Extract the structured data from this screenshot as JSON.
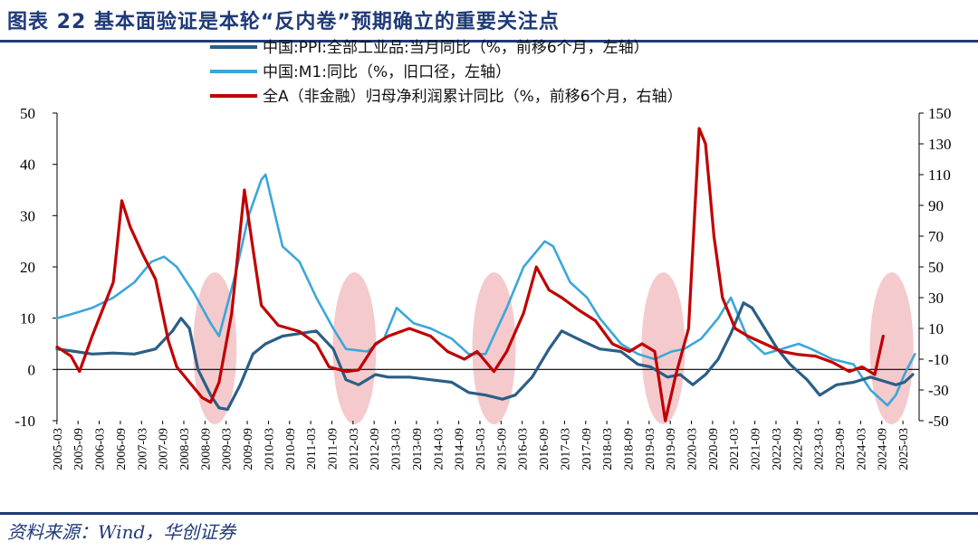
{
  "header": {
    "figure_title": "图表 22   基本面验证是本轮“反内卷”预期确立的重要关注点"
  },
  "footer": {
    "source": "资料来源：Wind，华创证券"
  },
  "colors": {
    "brand": "#1f3a78",
    "ppi": "#2a5f86",
    "m1": "#3aa7d9",
    "profit": "#c00000",
    "highlight": "#f2b8bc"
  },
  "chart_data": {
    "type": "line",
    "title": "",
    "left_axis": {
      "ylim": [
        -10,
        50
      ],
      "ticks": [
        -10,
        0,
        10,
        20,
        30,
        40,
        50
      ]
    },
    "right_axis": {
      "ylim": [
        -50,
        150
      ],
      "ticks": [
        -50,
        -30,
        -10,
        10,
        30,
        50,
        70,
        90,
        110,
        130,
        150
      ]
    },
    "x_tick_labels": [
      "2005-03",
      "2005-09",
      "2006-03",
      "2006-09",
      "2007-03",
      "2007-09",
      "2008-03",
      "2008-09",
      "2009-03",
      "2009-09",
      "2010-03",
      "2010-09",
      "2011-03",
      "2011-09",
      "2012-03",
      "2012-09",
      "2013-03",
      "2013-09",
      "2014-03",
      "2014-09",
      "2015-03",
      "2015-09",
      "2016-03",
      "2016-09",
      "2017-03",
      "2017-09",
      "2018-03",
      "2018-09",
      "2019-03",
      "2019-09",
      "2020-03",
      "2020-09",
      "2021-03",
      "2021-09",
      "2022-03",
      "2022-09",
      "2023-03",
      "2023-09",
      "2024-03",
      "2024-09",
      "2025-03"
    ],
    "highlight_periods": [
      2008.9,
      2012.2,
      2015.5,
      2019.5,
      2024.9
    ],
    "series": [
      {
        "name": "中国:PPI:全部工业品:当月同比（%，前移6个月，左轴）",
        "axis": "left",
        "color": "#2a5f86",
        "points": [
          [
            2005.17,
            4
          ],
          [
            2005.6,
            3.5
          ],
          [
            2006.0,
            3
          ],
          [
            2006.5,
            3.2
          ],
          [
            2007.0,
            3
          ],
          [
            2007.5,
            4
          ],
          [
            2007.9,
            7.5
          ],
          [
            2008.1,
            10
          ],
          [
            2008.3,
            8
          ],
          [
            2008.5,
            0
          ],
          [
            2008.8,
            -5
          ],
          [
            2009.0,
            -7.5
          ],
          [
            2009.2,
            -7.8
          ],
          [
            2009.5,
            -3
          ],
          [
            2009.8,
            3
          ],
          [
            2010.1,
            5
          ],
          [
            2010.5,
            6.5
          ],
          [
            2010.9,
            7
          ],
          [
            2011.3,
            7.5
          ],
          [
            2011.7,
            4
          ],
          [
            2012.0,
            -2
          ],
          [
            2012.3,
            -3
          ],
          [
            2012.7,
            -1
          ],
          [
            2013.0,
            -1.5
          ],
          [
            2013.5,
            -1.5
          ],
          [
            2014.0,
            -2
          ],
          [
            2014.5,
            -2.5
          ],
          [
            2014.9,
            -4.5
          ],
          [
            2015.3,
            -5
          ],
          [
            2015.7,
            -5.8
          ],
          [
            2016.0,
            -5
          ],
          [
            2016.4,
            -1.5
          ],
          [
            2016.8,
            4
          ],
          [
            2017.1,
            7.5
          ],
          [
            2017.6,
            5.5
          ],
          [
            2018.0,
            4
          ],
          [
            2018.5,
            3.5
          ],
          [
            2018.9,
            1
          ],
          [
            2019.2,
            0.5
          ],
          [
            2019.6,
            -1.5
          ],
          [
            2019.9,
            -1
          ],
          [
            2020.2,
            -3
          ],
          [
            2020.5,
            -1
          ],
          [
            2020.8,
            2
          ],
          [
            2021.1,
            7
          ],
          [
            2021.4,
            13
          ],
          [
            2021.6,
            12
          ],
          [
            2021.9,
            8
          ],
          [
            2022.2,
            4
          ],
          [
            2022.5,
            1
          ],
          [
            2022.9,
            -2
          ],
          [
            2023.2,
            -5
          ],
          [
            2023.6,
            -3
          ],
          [
            2024.0,
            -2.5
          ],
          [
            2024.4,
            -1.5
          ],
          [
            2024.8,
            -2.5
          ],
          [
            2025.0,
            -3
          ],
          [
            2025.2,
            -2.5
          ],
          [
            2025.4,
            -1
          ]
        ]
      },
      {
        "name": "中国:M1:同比（%，旧口径，左轴）",
        "axis": "left",
        "color": "#3aa7d9",
        "points": [
          [
            2005.17,
            10
          ],
          [
            2005.6,
            11
          ],
          [
            2006.0,
            12
          ],
          [
            2006.5,
            14
          ],
          [
            2007.0,
            17
          ],
          [
            2007.4,
            21
          ],
          [
            2007.7,
            22
          ],
          [
            2008.0,
            20
          ],
          [
            2008.4,
            15
          ],
          [
            2008.8,
            9
          ],
          [
            2009.0,
            6.5
          ],
          [
            2009.4,
            19
          ],
          [
            2009.7,
            30
          ],
          [
            2010.0,
            37
          ],
          [
            2010.1,
            38
          ],
          [
            2010.5,
            24
          ],
          [
            2010.9,
            21
          ],
          [
            2011.3,
            14
          ],
          [
            2011.7,
            8
          ],
          [
            2012.0,
            4
          ],
          [
            2012.5,
            3.5
          ],
          [
            2012.9,
            6
          ],
          [
            2013.2,
            12
          ],
          [
            2013.6,
            9
          ],
          [
            2014.0,
            8
          ],
          [
            2014.5,
            6
          ],
          [
            2014.9,
            3
          ],
          [
            2015.3,
            3
          ],
          [
            2015.8,
            12
          ],
          [
            2016.2,
            20
          ],
          [
            2016.7,
            25
          ],
          [
            2016.9,
            24
          ],
          [
            2017.3,
            17
          ],
          [
            2017.7,
            14
          ],
          [
            2018.0,
            10
          ],
          [
            2018.5,
            5
          ],
          [
            2018.9,
            3
          ],
          [
            2019.3,
            2
          ],
          [
            2019.7,
            3.5
          ],
          [
            2020.0,
            4
          ],
          [
            2020.4,
            6
          ],
          [
            2020.8,
            10
          ],
          [
            2021.1,
            14
          ],
          [
            2021.5,
            6
          ],
          [
            2021.9,
            3
          ],
          [
            2022.3,
            4
          ],
          [
            2022.7,
            5
          ],
          [
            2023.0,
            4
          ],
          [
            2023.5,
            2
          ],
          [
            2024.0,
            1
          ],
          [
            2024.4,
            -4
          ],
          [
            2024.8,
            -7
          ],
          [
            2025.0,
            -5
          ],
          [
            2025.2,
            -1
          ],
          [
            2025.45,
            3
          ]
        ]
      },
      {
        "name": "全A（非金融）归母净利润累计同比（%，前移6个月，右轴）",
        "axis": "right",
        "color": "#c00000",
        "points": [
          [
            2005.17,
            -2
          ],
          [
            2005.5,
            -8
          ],
          [
            2005.7,
            -18
          ],
          [
            2006.0,
            5
          ],
          [
            2006.5,
            40
          ],
          [
            2006.7,
            93
          ],
          [
            2006.9,
            76
          ],
          [
            2007.2,
            58
          ],
          [
            2007.5,
            42
          ],
          [
            2007.8,
            2
          ],
          [
            2008.0,
            -15
          ],
          [
            2008.3,
            -25
          ],
          [
            2008.6,
            -35
          ],
          [
            2008.8,
            -38
          ],
          [
            2009.0,
            -25
          ],
          [
            2009.3,
            20
          ],
          [
            2009.6,
            100
          ],
          [
            2009.8,
            62
          ],
          [
            2010.0,
            25
          ],
          [
            2010.4,
            12
          ],
          [
            2010.9,
            8
          ],
          [
            2011.3,
            0
          ],
          [
            2011.6,
            -15
          ],
          [
            2012.0,
            -18
          ],
          [
            2012.3,
            -17
          ],
          [
            2012.7,
            0
          ],
          [
            2013.0,
            5
          ],
          [
            2013.5,
            10
          ],
          [
            2014.0,
            5
          ],
          [
            2014.4,
            -5
          ],
          [
            2014.8,
            -10
          ],
          [
            2015.1,
            -5
          ],
          [
            2015.5,
            -18
          ],
          [
            2015.8,
            -5
          ],
          [
            2016.2,
            20
          ],
          [
            2016.5,
            50
          ],
          [
            2016.8,
            35
          ],
          [
            2017.1,
            30
          ],
          [
            2017.5,
            22
          ],
          [
            2017.9,
            15
          ],
          [
            2018.3,
            0
          ],
          [
            2018.7,
            -5
          ],
          [
            2019.0,
            0
          ],
          [
            2019.3,
            -5
          ],
          [
            2019.55,
            -50
          ],
          [
            2019.8,
            -20
          ],
          [
            2020.1,
            10
          ],
          [
            2020.35,
            140
          ],
          [
            2020.5,
            130
          ],
          [
            2020.7,
            70
          ],
          [
            2020.9,
            30
          ],
          [
            2021.2,
            10
          ],
          [
            2021.5,
            5
          ],
          [
            2021.9,
            0
          ],
          [
            2022.3,
            -5
          ],
          [
            2022.7,
            -7
          ],
          [
            2023.1,
            -8
          ],
          [
            2023.5,
            -12
          ],
          [
            2023.9,
            -18
          ],
          [
            2024.2,
            -15
          ],
          [
            2024.5,
            -20
          ],
          [
            2024.7,
            5
          ]
        ]
      }
    ]
  }
}
